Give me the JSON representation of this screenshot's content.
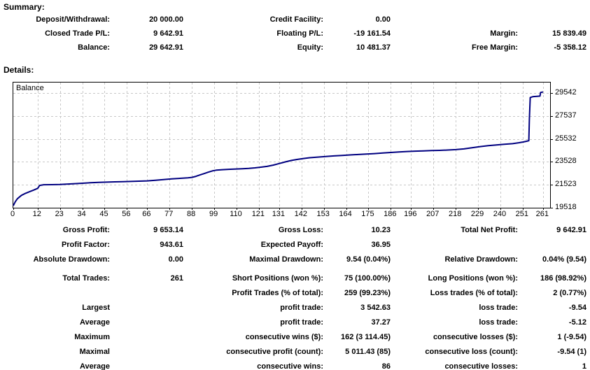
{
  "summary": {
    "heading": "Summary:",
    "rows": [
      [
        {
          "label": "Deposit/Withdrawal:",
          "value": "20 000.00"
        },
        {
          "label": "Credit Facility:",
          "value": "0.00"
        },
        {
          "label": "",
          "value": ""
        }
      ],
      [
        {
          "label": "Closed Trade P/L:",
          "value": "9 642.91"
        },
        {
          "label": "Floating P/L:",
          "value": "-19 161.54"
        },
        {
          "label": "Margin:",
          "value": "15 839.49"
        }
      ],
      [
        {
          "label": "Balance:",
          "value": "29 642.91"
        },
        {
          "label": "Equity:",
          "value": "10 481.37"
        },
        {
          "label": "Free Margin:",
          "value": "-5 358.12"
        }
      ]
    ]
  },
  "details": {
    "heading": "Details:",
    "stats_rows": [
      [
        {
          "label": "Gross Profit:",
          "value": "9 653.14"
        },
        {
          "label": "Gross Loss:",
          "value": "10.23"
        },
        {
          "label": "Total Net Profit:",
          "value": "9 642.91"
        }
      ],
      [
        {
          "label": "Profit Factor:",
          "value": "943.61"
        },
        {
          "label": "Expected Payoff:",
          "value": "36.95"
        },
        {
          "label": "",
          "value": ""
        }
      ],
      [
        {
          "label": "Absolute Drawdown:",
          "value": "0.00"
        },
        {
          "label": "Maximal Drawdown:",
          "value": "9.54 (0.04%)"
        },
        {
          "label": "Relative Drawdown:",
          "value": "0.04% (9.54)"
        }
      ]
    ],
    "trade_rows": [
      [
        {
          "label": "Total Trades:",
          "value": "261"
        },
        {
          "label": "Short Positions (won %):",
          "value": "75 (100.00%)"
        },
        {
          "label": "Long Positions (won %):",
          "value": "186 (98.92%)"
        }
      ],
      [
        {
          "label": "",
          "value": ""
        },
        {
          "label": "Profit Trades (% of total):",
          "value": "259 (99.23%)"
        },
        {
          "label": "Loss trades (% of total):",
          "value": "2 (0.77%)"
        }
      ],
      [
        {
          "label": "Largest",
          "value": ""
        },
        {
          "label": "profit trade:",
          "value": "3 542.63"
        },
        {
          "label": "loss trade:",
          "value": "-9.54"
        }
      ],
      [
        {
          "label": "Average",
          "value": ""
        },
        {
          "label": "profit trade:",
          "value": "37.27"
        },
        {
          "label": "loss trade:",
          "value": "-5.12"
        }
      ],
      [
        {
          "label": "Maximum",
          "value": ""
        },
        {
          "label": "consecutive wins ($):",
          "value": "162 (3 114.45)"
        },
        {
          "label": "consecutive losses ($):",
          "value": "1 (-9.54)"
        }
      ],
      [
        {
          "label": "Maximal",
          "value": ""
        },
        {
          "label": "consecutive profit (count):",
          "value": "5 011.43 (85)"
        },
        {
          "label": "consecutive loss (count):",
          "value": "-9.54 (1)"
        }
      ],
      [
        {
          "label": "Average",
          "value": ""
        },
        {
          "label": "consecutive wins:",
          "value": "86"
        },
        {
          "label": "consecutive losses:",
          "value": "1"
        }
      ]
    ]
  },
  "chart_data": {
    "type": "line",
    "title": "Balance",
    "xlabel": "",
    "ylabel": "",
    "x_ticks": [
      0,
      12,
      23,
      34,
      45,
      56,
      66,
      77,
      88,
      99,
      110,
      121,
      131,
      142,
      153,
      164,
      175,
      186,
      196,
      207,
      218,
      229,
      240,
      251,
      261
    ],
    "y_ticks": [
      29542,
      27537,
      25532,
      23528,
      21523,
      19518
    ],
    "y_gridlines": [
      21523,
      23528,
      25532,
      27537,
      29542
    ],
    "xlim": [
      0,
      264.5
    ],
    "ylim": [
      19518,
      30470
    ],
    "grid": "dashed",
    "grid_color": "#c8c8c8",
    "line_color": "#000080",
    "series": [
      {
        "name": "Balance",
        "points": [
          [
            0,
            19700
          ],
          [
            1,
            20050
          ],
          [
            2,
            20300
          ],
          [
            4,
            20600
          ],
          [
            6,
            20780
          ],
          [
            8,
            20920
          ],
          [
            10,
            21060
          ],
          [
            12,
            21210
          ],
          [
            13,
            21470
          ],
          [
            15,
            21530
          ],
          [
            19,
            21540
          ],
          [
            23,
            21555
          ],
          [
            27,
            21590
          ],
          [
            31,
            21630
          ],
          [
            34,
            21660
          ],
          [
            38,
            21700
          ],
          [
            42,
            21730
          ],
          [
            46,
            21755
          ],
          [
            50,
            21780
          ],
          [
            54,
            21800
          ],
          [
            58,
            21820
          ],
          [
            62,
            21845
          ],
          [
            66,
            21870
          ],
          [
            70,
            21925
          ],
          [
            74,
            21985
          ],
          [
            78,
            22040
          ],
          [
            82,
            22090
          ],
          [
            86,
            22135
          ],
          [
            88,
            22175
          ],
          [
            90,
            22265
          ],
          [
            92,
            22385
          ],
          [
            94,
            22505
          ],
          [
            96,
            22625
          ],
          [
            98,
            22735
          ],
          [
            100,
            22805
          ],
          [
            103,
            22845
          ],
          [
            106,
            22875
          ],
          [
            110,
            22905
          ],
          [
            113,
            22935
          ],
          [
            116,
            22965
          ],
          [
            119,
            23005
          ],
          [
            122,
            23065
          ],
          [
            125,
            23135
          ],
          [
            128,
            23245
          ],
          [
            131,
            23385
          ],
          [
            134,
            23525
          ],
          [
            137,
            23655
          ],
          [
            140,
            23745
          ],
          [
            143,
            23825
          ],
          [
            146,
            23890
          ],
          [
            150,
            23950
          ],
          [
            154,
            24005
          ],
          [
            158,
            24050
          ],
          [
            162,
            24095
          ],
          [
            166,
            24135
          ],
          [
            170,
            24175
          ],
          [
            174,
            24215
          ],
          [
            178,
            24255
          ],
          [
            182,
            24300
          ],
          [
            186,
            24350
          ],
          [
            190,
            24400
          ],
          [
            194,
            24440
          ],
          [
            198,
            24470
          ],
          [
            202,
            24495
          ],
          [
            206,
            24515
          ],
          [
            210,
            24535
          ],
          [
            214,
            24565
          ],
          [
            218,
            24605
          ],
          [
            222,
            24665
          ],
          [
            226,
            24765
          ],
          [
            230,
            24865
          ],
          [
            234,
            24945
          ],
          [
            238,
            25005
          ],
          [
            242,
            25065
          ],
          [
            246,
            25125
          ],
          [
            249,
            25205
          ],
          [
            251,
            25265
          ],
          [
            253,
            25335
          ],
          [
            254,
            25385
          ],
          [
            254.3,
            27300
          ],
          [
            254.7,
            29160
          ],
          [
            256,
            29235
          ],
          [
            258,
            29265
          ],
          [
            259.5,
            29285
          ],
          [
            259.8,
            29600
          ],
          [
            261,
            29642
          ]
        ]
      }
    ]
  }
}
